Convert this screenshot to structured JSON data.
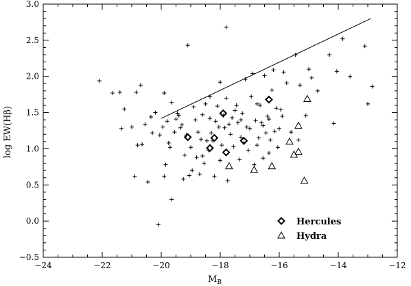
{
  "chart_data": {
    "type": "scatter",
    "xlabel": "M",
    "xlabel_sub": "B",
    "ylabel": "log EW(Hβ)",
    "xlim": [
      -24,
      -12
    ],
    "ylim": [
      -0.5,
      3.0
    ],
    "x_ticks": [
      -24,
      -22,
      -20,
      -18,
      -16,
      -14,
      -12
    ],
    "y_ticks": [
      -0.5,
      0.0,
      0.5,
      1.0,
      1.5,
      2.0,
      2.5,
      3.0
    ],
    "y_tick_labels": [
      "−0.5",
      "0.0",
      "0.5",
      "1.0",
      "1.5",
      "2.0",
      "2.5",
      "3.0"
    ],
    "x_tick_labels": [
      "−24",
      "−22",
      "−20",
      "−18",
      "−16",
      "−14",
      "−12"
    ],
    "grid": false,
    "legend_position": "bottom-right",
    "line": {
      "x": [
        -20.0,
        -12.9
      ],
      "y": [
        1.42,
        2.8
      ]
    },
    "series": [
      {
        "name": "",
        "marker": "plus",
        "x": [
          -22.1,
          -21.4,
          -21.35,
          -21.25,
          -21.0,
          -20.8,
          -20.7,
          -20.65,
          -20.55,
          -20.45,
          -20.35,
          -20.3,
          -20.2,
          -20.05,
          -19.95,
          -19.9,
          -19.85,
          -19.8,
          -19.75,
          -19.7,
          -19.65,
          -19.55,
          -19.5,
          -19.45,
          -19.4,
          -19.35,
          -19.3,
          -19.2,
          -19.15,
          -19.05,
          -19.0,
          -18.95,
          -18.9,
          -18.85,
          -18.8,
          -18.75,
          -18.7,
          -18.65,
          -18.6,
          -18.55,
          -18.5,
          -18.45,
          -18.4,
          -18.35,
          -18.3,
          -18.25,
          -18.2,
          -18.15,
          -18.1,
          -18.05,
          -18.0,
          -17.95,
          -17.9,
          -17.85,
          -17.8,
          -17.75,
          -17.7,
          -17.65,
          -17.6,
          -17.55,
          -17.5,
          -17.45,
          -17.4,
          -17.35,
          -17.3,
          -17.25,
          -17.2,
          -17.15,
          -17.1,
          -17.05,
          -17.0,
          -16.95,
          -16.9,
          -16.85,
          -16.8,
          -16.75,
          -16.7,
          -16.65,
          -16.6,
          -16.55,
          -16.5,
          -16.45,
          -16.4,
          -16.35,
          -16.3,
          -16.25,
          -16.2,
          -16.15,
          -16.1,
          -16.05,
          -16.0,
          -15.95,
          -15.85,
          -15.75,
          -15.6,
          -15.45,
          -15.35,
          -15.3,
          -15.1,
          -15.0,
          -14.9,
          -14.7,
          -14.3,
          -14.15,
          -14.05,
          -13.85,
          -13.6,
          -13.1,
          -13.0,
          -12.85,
          -20.1,
          -19.65,
          -19.9,
          -20.9,
          -20.85,
          -21.65,
          -19.1,
          -18.35,
          -17.8,
          -17.3,
          -18.6,
          -19.25,
          -18.0,
          -16.75,
          -16.55,
          -16.35,
          -15.9
        ],
        "y": [
          1.94,
          1.78,
          1.28,
          1.55,
          1.3,
          1.05,
          1.88,
          1.06,
          1.34,
          0.54,
          1.44,
          1.22,
          1.5,
          1.19,
          1.3,
          1.77,
          0.78,
          1.38,
          1.08,
          1.02,
          1.64,
          1.23,
          1.41,
          1.49,
          1.46,
          1.29,
          1.33,
          0.91,
          1.19,
          0.63,
          1.02,
          0.7,
          1.58,
          1.4,
          0.88,
          1.23,
          0.65,
          1.13,
          0.9,
          0.8,
          1.62,
          1.11,
          0.98,
          1.42,
          1.22,
          1.11,
          0.62,
          1.38,
          1.59,
          1.3,
          0.84,
          1.05,
          1.46,
          1.29,
          1.7,
          0.56,
          1.34,
          1.2,
          1.43,
          1.03,
          1.53,
          1.6,
          1.36,
          0.85,
          1.16,
          1.49,
          1.08,
          1.96,
          1.3,
          0.98,
          1.28,
          1.72,
          2.04,
          0.78,
          1.39,
          1.05,
          1.15,
          1.6,
          1.36,
          0.87,
          2.01,
          1.22,
          1.45,
          0.94,
          1.12,
          1.81,
          2.09,
          1.24,
          1.56,
          1.02,
          1.28,
          1.54,
          2.06,
          1.91,
          1.23,
          2.3,
          1.12,
          1.88,
          1.46,
          2.1,
          1.98,
          1.8,
          2.3,
          1.35,
          2.07,
          2.52,
          2.0,
          2.42,
          1.62,
          1.86,
          -0.05,
          0.3,
          0.62,
          0.62,
          1.78,
          1.77,
          2.43,
          1.72,
          2.68,
          1.4,
          1.47,
          0.58,
          1.92,
          1.62,
          1.32,
          1.41,
          1.45
        ]
      },
      {
        "name": "Hercules",
        "marker": "diamond",
        "x": [
          -19.1,
          -18.35,
          -18.2,
          -17.9,
          -17.8,
          -17.2,
          -16.35
        ],
        "y": [
          1.16,
          1.01,
          1.15,
          1.49,
          0.95,
          1.11,
          1.68
        ]
      },
      {
        "name": "Hydra",
        "marker": "triangle",
        "x": [
          -17.7,
          -16.85,
          -16.25,
          -15.65,
          -15.5,
          -15.35,
          -15.35,
          -15.15,
          -15.05
        ],
        "y": [
          0.76,
          0.71,
          0.76,
          1.1,
          0.92,
          0.96,
          1.32,
          0.56,
          1.69
        ]
      }
    ]
  }
}
